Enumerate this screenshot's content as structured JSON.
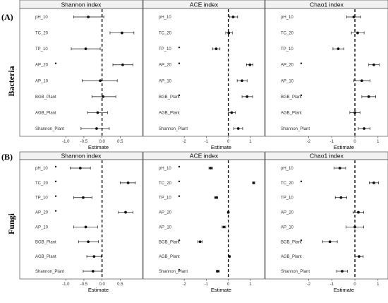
{
  "figure": {
    "panel_labels": [
      "(A)",
      "(B)"
    ],
    "row_labels": [
      "Bacteria",
      "Fungi"
    ],
    "column_titles": [
      "Shannon index",
      "ACE index",
      "Chao1 index"
    ],
    "x_axis_label": "Estimate",
    "colors": {
      "point": "#111111",
      "ref_line": "#000000",
      "strip_fill": "#f2f2f2",
      "frame": "#333333"
    }
  },
  "chart_data": [
    {
      "type": "scatter",
      "subtype": "forest-plot",
      "row": "Bacteria",
      "title": "Shannon index",
      "xlabel": "Estimate",
      "xlim": [
        -1.2,
        1.0
      ],
      "xticks": [
        "-1.0",
        "-0.5",
        "0.0",
        "0.5"
      ],
      "reference_line": 0,
      "categories": [
        "pH_10",
        "TC_20",
        "TP_10",
        "AP_20",
        "AP_10",
        "BGB_Plant",
        "AGB_Plant",
        "Shannon_Plant"
      ],
      "estimate": [
        -0.38,
        0.55,
        -0.45,
        0.57,
        -0.05,
        0.03,
        -0.12,
        -0.15
      ],
      "lower": [
        -0.78,
        0.22,
        -0.85,
        0.3,
        -0.55,
        -0.28,
        -0.4,
        -0.58
      ],
      "upper": [
        0.05,
        0.88,
        -0.05,
        0.85,
        0.42,
        0.38,
        0.15,
        0.2
      ],
      "significance_marks": [
        false,
        false,
        false,
        true,
        false,
        false,
        false,
        false
      ]
    },
    {
      "type": "scatter",
      "subtype": "forest-plot",
      "row": "Bacteria",
      "title": "ACE index",
      "xlabel": "Estimate",
      "xlim": [
        -2.1,
        1.45
      ],
      "xticks": [
        "-2",
        "-1",
        "0",
        "1"
      ],
      "reference_line": 0,
      "categories": [
        "pH_10",
        "TC_20",
        "TP_10",
        "AP_20",
        "AP_10",
        "BGB_Plant",
        "AGB_Plant",
        "Shannon_Plant"
      ],
      "estimate": [
        0.22,
        0.02,
        -0.55,
        0.98,
        0.62,
        0.85,
        0.15,
        0.45
      ],
      "lower": [
        0.05,
        -0.12,
        -0.72,
        0.82,
        0.4,
        0.62,
        0.0,
        0.25
      ],
      "upper": [
        0.42,
        0.18,
        -0.38,
        1.12,
        0.85,
        1.1,
        0.32,
        0.65
      ],
      "significance_marks": [
        false,
        false,
        true,
        true,
        false,
        true,
        false,
        false
      ]
    },
    {
      "type": "scatter",
      "subtype": "forest-plot",
      "row": "Bacteria",
      "title": "Chao1 index",
      "xlabel": "Estimate",
      "xlim": [
        -2.2,
        1.25
      ],
      "xticks": [
        "-2",
        "-1",
        "0",
        "1"
      ],
      "reference_line": 0,
      "categories": [
        "pH_10",
        "TC_20",
        "TP_10",
        "AP_20",
        "AP_10",
        "BGB_Plant",
        "AGB_Plant",
        "Shannon_Plant"
      ],
      "estimate": [
        -0.05,
        0.12,
        -0.72,
        0.82,
        0.3,
        0.6,
        0.0,
        0.4
      ],
      "lower": [
        -0.35,
        -0.15,
        -0.95,
        0.6,
        -0.05,
        0.3,
        -0.22,
        0.15
      ],
      "upper": [
        0.25,
        0.4,
        -0.48,
        1.05,
        0.65,
        0.9,
        0.22,
        0.65
      ],
      "significance_marks": [
        false,
        false,
        false,
        true,
        false,
        true,
        false,
        false
      ]
    },
    {
      "type": "scatter",
      "subtype": "forest-plot",
      "row": "Fungi",
      "title": "Shannon index",
      "xlabel": "Estimate",
      "xlim": [
        -1.2,
        1.0
      ],
      "xticks": [
        "-1.0",
        "-0.5",
        "0.0",
        "0.5"
      ],
      "reference_line": 0,
      "categories": [
        "pH_10",
        "TC_20",
        "TP_10",
        "AP_20",
        "AP_10",
        "BGB_Plant",
        "AGB_Plant",
        "Shannon_Plant"
      ],
      "estimate": [
        -0.6,
        0.72,
        -0.52,
        0.65,
        -0.45,
        -0.38,
        -0.22,
        -0.25
      ],
      "lower": [
        -0.88,
        0.5,
        -0.78,
        0.45,
        -0.78,
        -0.65,
        -0.42,
        -0.52
      ],
      "upper": [
        -0.32,
        0.92,
        -0.28,
        0.85,
        -0.12,
        -0.1,
        -0.02,
        0.0
      ],
      "significance_marks": [
        true,
        true,
        true,
        true,
        false,
        false,
        false,
        false
      ]
    },
    {
      "type": "scatter",
      "subtype": "forest-plot",
      "row": "Fungi",
      "title": "ACE index",
      "xlabel": "Estimate",
      "xlim": [
        -2.1,
        1.45
      ],
      "xticks": [
        "-2",
        "-1",
        "0",
        "1"
      ],
      "reference_line": 0,
      "categories": [
        "pH_10",
        "TC_20",
        "TP_10",
        "AP_20",
        "AP_10",
        "BGB_Plant",
        "AGB_Plant",
        "Shannon_Plant"
      ],
      "estimate": [
        -0.8,
        1.15,
        -0.55,
        0.0,
        -0.2,
        -1.28,
        0.05,
        -0.48
      ],
      "lower": [
        -0.88,
        1.1,
        -0.62,
        -0.03,
        -0.28,
        -1.38,
        0.02,
        -0.55
      ],
      "upper": [
        -0.72,
        1.2,
        -0.48,
        0.03,
        -0.12,
        -1.18,
        0.08,
        -0.41
      ],
      "significance_marks": [
        true,
        true,
        true,
        false,
        false,
        true,
        false,
        true
      ]
    },
    {
      "type": "scatter",
      "subtype": "forest-plot",
      "row": "Fungi",
      "title": "Chao1 index",
      "xlabel": "Estimate",
      "xlim": [
        -2.2,
        1.25
      ],
      "xticks": [
        "-2",
        "-1",
        "0",
        "1"
      ],
      "reference_line": 0,
      "categories": [
        "pH_10",
        "TC_20",
        "TP_10",
        "AP_20",
        "AP_10",
        "BGB_Plant",
        "AGB_Plant",
        "Shannon_Plant"
      ],
      "estimate": [
        -0.65,
        0.82,
        -0.6,
        0.15,
        0.0,
        -1.08,
        0.18,
        -0.55
      ],
      "lower": [
        -0.9,
        0.62,
        -0.85,
        -0.08,
        -0.38,
        -1.4,
        0.0,
        -0.78
      ],
      "upper": [
        -0.4,
        1.02,
        -0.35,
        0.38,
        0.38,
        -0.76,
        0.36,
        -0.32
      ],
      "significance_marks": [
        false,
        true,
        false,
        false,
        false,
        true,
        false,
        false
      ]
    }
  ]
}
